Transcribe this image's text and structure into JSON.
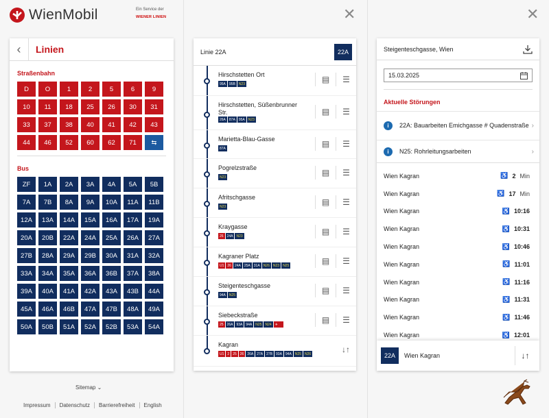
{
  "brand": {
    "name": "WienMobil",
    "service": "Ein Service der",
    "service_org": "WIENER LINIEN",
    "brand_red": "#c4161c",
    "navy": "#112d5e"
  },
  "linien": {
    "title": "Linien",
    "section_tram": "Straßenbahn",
    "section_bus": "Bus",
    "tram": [
      "D",
      "O",
      "1",
      "2",
      "5",
      "6",
      "9",
      "10",
      "11",
      "18",
      "25",
      "26",
      "30",
      "31",
      "33",
      "37",
      "38",
      "40",
      "41",
      "42",
      "43",
      "44",
      "46",
      "52",
      "60",
      "62",
      "71"
    ],
    "bus": [
      "ZF",
      "1A",
      "2A",
      "3A",
      "4A",
      "5A",
      "5B",
      "7A",
      "7B",
      "8A",
      "9A",
      "10A",
      "11A",
      "11B",
      "12A",
      "13A",
      "14A",
      "15A",
      "16A",
      "17A",
      "19A",
      "20A",
      "20B",
      "22A",
      "24A",
      "25A",
      "26A",
      "27A",
      "27B",
      "28A",
      "29A",
      "29B",
      "30A",
      "31A",
      "32A",
      "33A",
      "34A",
      "35A",
      "36A",
      "36B",
      "37A",
      "38A",
      "39A",
      "40A",
      "41A",
      "42A",
      "43A",
      "43B",
      "44A",
      "45A",
      "46A",
      "46B",
      "47A",
      "47B",
      "48A",
      "49A",
      "50A",
      "50B",
      "51A",
      "52A",
      "52B",
      "53A",
      "54A"
    ]
  },
  "footer": {
    "sitemap": "Sitemap",
    "links": [
      "Impressum",
      "Datenschutz",
      "Barrierefreiheit",
      "English"
    ]
  },
  "line": {
    "title": "Linie 22A",
    "badge": "22A",
    "stops": [
      {
        "name": "Hirschstetten Ort",
        "chips": [
          [
            "95A",
            "b"
          ],
          [
            "95B",
            "b"
          ],
          [
            "N23",
            "n"
          ]
        ]
      },
      {
        "name": "Hirschstetten, Süßenbrunner Str.",
        "chips": [
          [
            "26A",
            "b"
          ],
          [
            "87A",
            "b"
          ],
          [
            "95A",
            "b"
          ],
          [
            "N23",
            "n"
          ]
        ]
      },
      {
        "name": "Marietta-Blau-Gasse",
        "chips": [
          [
            "87A",
            "b"
          ]
        ]
      },
      {
        "name": "Pogrelzstraße",
        "chips": [
          [
            "N23",
            "n"
          ]
        ]
      },
      {
        "name": "Afritschgasse",
        "chips": [
          [
            "N23",
            "n"
          ]
        ]
      },
      {
        "name": "Kraygasse",
        "chips": [
          [
            "26",
            "r"
          ],
          [
            "24A",
            "b"
          ],
          [
            "N23",
            "n"
          ]
        ]
      },
      {
        "name": "Kagraner Platz",
        "chips": [
          [
            "U1",
            "r"
          ],
          [
            "26",
            "r"
          ],
          [
            "24A",
            "b"
          ],
          [
            "25A",
            "b"
          ],
          [
            "31A",
            "b"
          ],
          [
            "N26",
            "n"
          ],
          [
            "N23",
            "n"
          ],
          [
            "N25",
            "n"
          ]
        ]
      },
      {
        "name": "Steigenteschgasse",
        "chips": [
          [
            "94A",
            "b"
          ],
          [
            "N25",
            "n"
          ]
        ]
      },
      {
        "name": "Siebeckstraße",
        "chips": [
          [
            "25",
            "r"
          ],
          [
            "26A",
            "b"
          ],
          [
            "93A",
            "b"
          ],
          [
            "94A",
            "b"
          ],
          [
            "N25",
            "n"
          ],
          [
            "N24",
            "n"
          ],
          [
            "",
            "ar"
          ]
        ]
      },
      {
        "name": "Kagran",
        "chips": [
          [
            "U1",
            "r"
          ],
          [
            "2",
            "r"
          ],
          [
            "25",
            "r"
          ],
          [
            "26",
            "r"
          ],
          [
            "26A",
            "b"
          ],
          [
            "27A",
            "b"
          ],
          [
            "27B",
            "b"
          ],
          [
            "93A",
            "b"
          ],
          [
            "94A",
            "b"
          ],
          [
            "N25",
            "n"
          ],
          [
            "N26",
            "n"
          ]
        ]
      }
    ]
  },
  "detail": {
    "stop": "Steigenteschgasse, Wien",
    "date": "15.03.2025",
    "disruptions_title": "Aktuelle Störungen",
    "disruptions": [
      "22A: Bauarbeiten Emichgasse # Quadenstraße",
      "N25: Rohrleitungsarbeiten"
    ],
    "departures": [
      {
        "dest": "Wien Kagran",
        "val": "2",
        "unit": "Min"
      },
      {
        "dest": "Wien Kagran",
        "val": "17",
        "unit": "Min"
      },
      {
        "dest": "Wien Kagran",
        "val": "10:16",
        "unit": ""
      },
      {
        "dest": "Wien Kagran",
        "val": "10:31",
        "unit": ""
      },
      {
        "dest": "Wien Kagran",
        "val": "10:46",
        "unit": ""
      },
      {
        "dest": "Wien Kagran",
        "val": "11:01",
        "unit": ""
      },
      {
        "dest": "Wien Kagran",
        "val": "11:16",
        "unit": ""
      },
      {
        "dest": "Wien Kagran",
        "val": "11:31",
        "unit": ""
      },
      {
        "dest": "Wien Kagran",
        "val": "11:46",
        "unit": ""
      },
      {
        "dest": "Wien Kagran",
        "val": "12:01",
        "unit": ""
      }
    ],
    "footer_badge": "22A",
    "footer_dest": "Wien Kagran"
  }
}
